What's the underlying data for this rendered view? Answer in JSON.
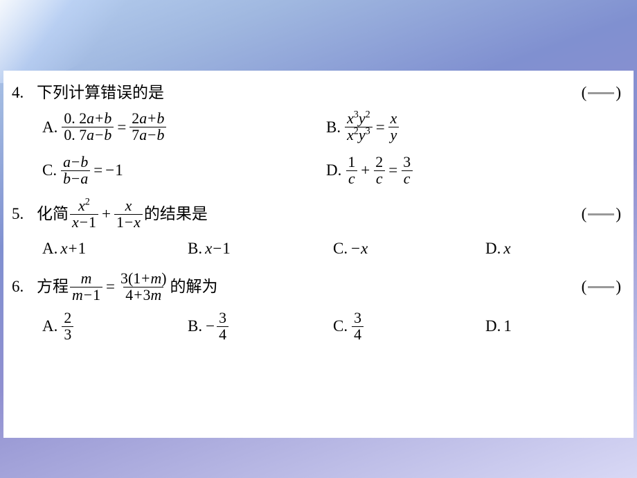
{
  "background": {
    "gradient_from": "#a8c0e8",
    "gradient_to": "#d8d8f5"
  },
  "page": {
    "background_color": "#ffffff",
    "font_family": "SimSun, Times New Roman, serif",
    "base_font_size": 23
  },
  "questions": [
    {
      "number": "4.",
      "stem_pre": "下列计算错误的是",
      "stem_mid": "",
      "stem_post": "",
      "rows": [
        {
          "cols": 2,
          "choices": [
            {
              "label": "A.",
              "expr_key": "q4a"
            },
            {
              "label": "B.",
              "expr_key": "q4b"
            }
          ]
        },
        {
          "cols": 2,
          "choices": [
            {
              "label": "C.",
              "expr_key": "q4c"
            },
            {
              "label": "D.",
              "expr_key": "q4d"
            }
          ]
        }
      ]
    },
    {
      "number": "5.",
      "stem_pre": "化简",
      "stem_mid": "q5_expr",
      "stem_post": "的结果是",
      "rows": [
        {
          "cols": 4,
          "choices": [
            {
              "label": "A.",
              "expr_key": "q5a"
            },
            {
              "label": "B.",
              "expr_key": "q5b"
            },
            {
              "label": "C.",
              "expr_key": "q5c"
            },
            {
              "label": "D.",
              "expr_key": "q5d"
            }
          ]
        }
      ]
    },
    {
      "number": "6.",
      "stem_pre": "方程",
      "stem_mid": "q6_expr",
      "stem_post": "的解为",
      "rows": [
        {
          "cols": 4,
          "choices": [
            {
              "label": "A.",
              "expr_key": "q6a"
            },
            {
              "label": "B.",
              "expr_key": "q6b"
            },
            {
              "label": "C.",
              "expr_key": "q6c"
            },
            {
              "label": "D.",
              "expr_key": "q6d"
            }
          ]
        }
      ]
    }
  ],
  "expressions": {
    "q4a": {
      "type": "equation",
      "left": {
        "num": "0. 2a+b",
        "den": "0. 7a−b"
      },
      "right": {
        "num": "2a+b",
        "den": "7a−b"
      }
    },
    "q4b": {
      "type": "equation",
      "left": {
        "num": "x³y²",
        "den": "x²y³",
        "num_raw": "x^3 y^2",
        "den_raw": "x^2 y^3"
      },
      "right": {
        "num": "x",
        "den": "y"
      }
    },
    "q4c": {
      "type": "eq_rhs",
      "left": {
        "num": "a−b",
        "den": "b−a"
      },
      "rhs": "−1"
    },
    "q4d": {
      "type": "sum_eq",
      "t1": {
        "num": "1",
        "den": "c"
      },
      "t2": {
        "num": "2",
        "den": "c"
      },
      "r": {
        "num": "3",
        "den": "c"
      }
    },
    "q5_expr": {
      "type": "sum",
      "t1": {
        "num": "x²",
        "num_raw": "x^2",
        "den": "x−1"
      },
      "t2": {
        "num": "x",
        "den": "1−x"
      }
    },
    "q5a": {
      "type": "plain",
      "text": "x+1"
    },
    "q5b": {
      "type": "plain",
      "text": "x−1"
    },
    "q5c": {
      "type": "plain",
      "text": "−x"
    },
    "q5d": {
      "type": "plain",
      "text": "x"
    },
    "q6_expr": {
      "type": "equation",
      "left": {
        "num": "m",
        "den": "m−1"
      },
      "right": {
        "num": "3(1+m)",
        "den": "4+3m"
      }
    },
    "q6a": {
      "type": "frac",
      "num": "2",
      "den": "3"
    },
    "q6b": {
      "type": "neg_frac",
      "num": "3",
      "den": "4"
    },
    "q6c": {
      "type": "frac",
      "num": "3",
      "den": "4"
    },
    "q6d": {
      "type": "plain",
      "text": "1"
    }
  },
  "paren": {
    "open": "(",
    "close": ")"
  }
}
